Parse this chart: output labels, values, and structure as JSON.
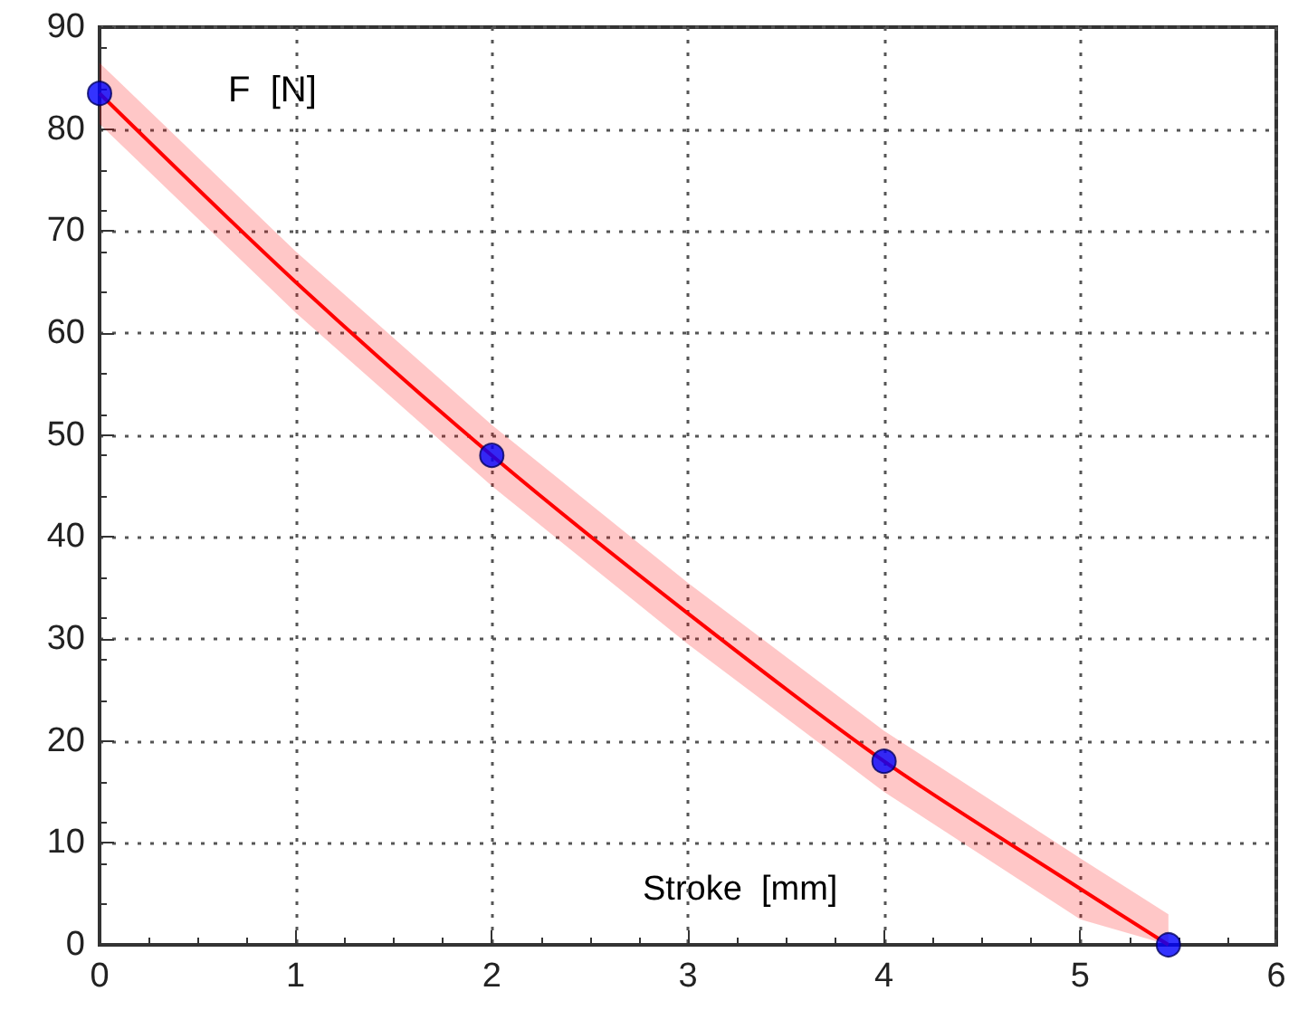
{
  "chart_data": {
    "type": "line",
    "xlabel": "Stroke  [mm]",
    "ylabel": "F  [N]",
    "xlim": [
      0,
      6
    ],
    "xticks": [
      0,
      1,
      2,
      3,
      4,
      5,
      6
    ],
    "ylim": [
      0,
      90
    ],
    "yticks": [
      0,
      10,
      20,
      30,
      40,
      50,
      60,
      70,
      80,
      90
    ],
    "grid": true,
    "line_style": "solid",
    "series": [
      {
        "color": "#ff0000",
        "marker": "none",
        "x": [
          0,
          1,
          2,
          3,
          4,
          5,
          5.45
        ],
        "values": [
          83.5,
          65,
          48,
          32.5,
          18,
          5.5,
          0
        ],
        "lower": [
          80.5,
          62,
          45,
          29.5,
          15,
          2.5,
          0
        ],
        "upper": [
          86.5,
          68,
          51,
          35.5,
          21,
          8.5,
          3
        ]
      },
      {
        "type": "scatter",
        "color": "#0000ff",
        "marker": "circle",
        "x": [
          0,
          2,
          4,
          5.45
        ],
        "values": [
          83.5,
          48,
          18,
          0
        ]
      }
    ]
  }
}
